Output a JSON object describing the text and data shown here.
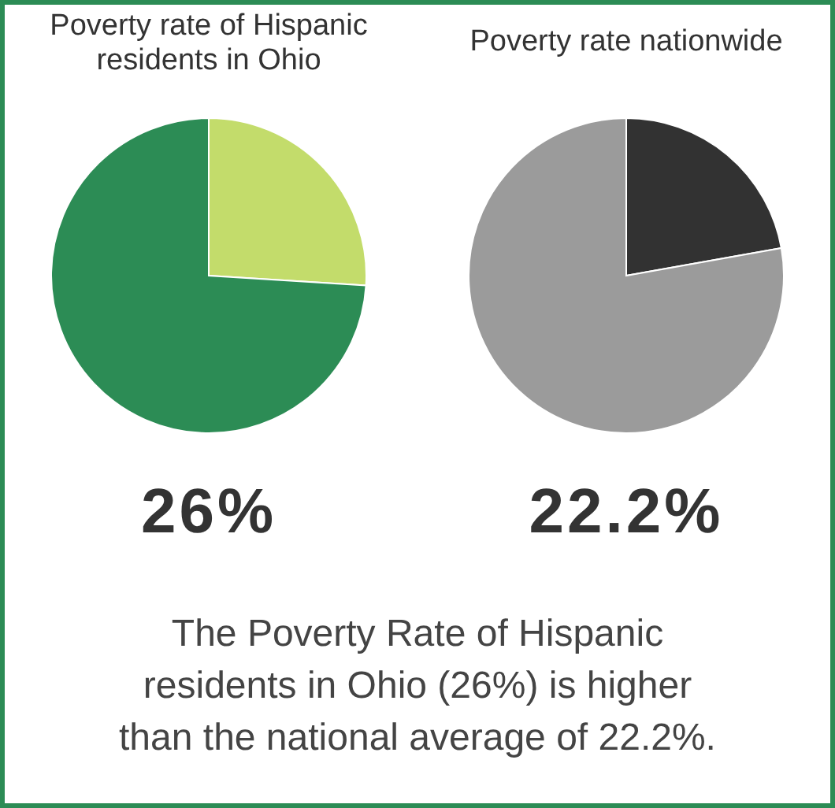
{
  "chart_data": [
    {
      "type": "pie",
      "title": "Poverty rate of Hispanic residents in Ohio",
      "categories": [
        null,
        null
      ],
      "values": [
        26,
        74
      ],
      "colors": [
        "#c3dc6b",
        "#2c8c55"
      ],
      "annotations": [
        "26%"
      ]
    },
    {
      "type": "pie",
      "title": "Poverty rate nationwide",
      "categories": [
        null,
        null
      ],
      "values": [
        22.2,
        77.8
      ],
      "colors": [
        "#323232",
        "#9b9b9b"
      ],
      "annotations": [
        "22.2%"
      ]
    },
    {
      "type": "other",
      "annotations": [
        "The Poverty Rate of Hispanic residents in Ohio (26%) is higher than the national average of 22.2%."
      ]
    }
  ]
}
